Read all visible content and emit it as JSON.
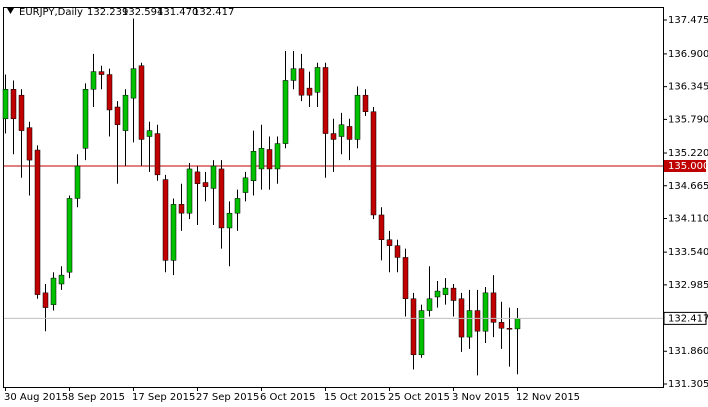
{
  "chart_data": {
    "type": "candlestick",
    "title": "EURJPY,Daily",
    "header_values": [
      "132.239",
      "132.594",
      "131.470",
      "132.417"
    ],
    "categories": [
      "30 Aug 2015",
      null,
      null,
      null,
      null,
      null,
      null,
      null,
      "8 Sep 2015",
      null,
      null,
      null,
      null,
      null,
      null,
      null,
      "17 Sep 2015",
      null,
      null,
      null,
      null,
      null,
      null,
      null,
      "27 Sep 2015",
      null,
      null,
      null,
      null,
      null,
      null,
      null,
      "6 Oct 2015",
      null,
      null,
      null,
      null,
      null,
      null,
      null,
      "15 Oct 2015",
      null,
      null,
      null,
      null,
      null,
      null,
      null,
      "25 Oct 2015",
      null,
      null,
      null,
      null,
      null,
      null,
      null,
      "3 Nov 2015",
      null,
      null,
      null,
      null,
      null,
      null,
      null,
      "12 Nov 2015"
    ],
    "open": [
      135.8,
      136.3,
      136.2,
      135.65,
      135.27,
      132.85,
      132.65,
      133.0,
      133.2,
      134.45,
      135.3,
      136.3,
      136.6,
      136.55,
      136.0,
      135.6,
      136.15,
      136.7,
      135.5,
      135.55,
      134.77,
      133.4,
      134.35,
      134.2,
      134.9,
      134.72,
      134.62,
      134.95,
      133.95,
      134.2,
      134.55,
      134.75,
      134.95,
      135.28,
      134.95,
      135.38,
      136.45,
      136.65,
      136.32,
      136.25,
      136.67,
      135.55,
      135.5,
      135.67,
      135.45,
      136.2,
      135.92,
      134.17,
      133.75,
      133.65,
      133.45,
      132.75,
      131.8,
      132.55,
      132.78,
      132.82,
      132.93,
      132.75,
      132.1,
      132.55,
      132.2,
      132.85,
      132.35,
      132.25,
      132.239
    ],
    "high": [
      136.55,
      136.45,
      136.3,
      135.75,
      135.35,
      133.0,
      133.2,
      133.3,
      134.5,
      135.2,
      136.4,
      136.9,
      136.7,
      136.65,
      136.1,
      136.3,
      137.5,
      136.75,
      135.75,
      135.7,
      134.85,
      134.45,
      134.7,
      135.05,
      135.0,
      134.9,
      135.1,
      135.1,
      134.4,
      134.6,
      134.9,
      135.6,
      135.7,
      135.5,
      135.5,
      136.95,
      136.95,
      136.9,
      136.6,
      136.75,
      136.75,
      135.8,
      135.9,
      135.8,
      136.35,
      136.3,
      136.0,
      134.3,
      133.9,
      133.75,
      133.6,
      132.85,
      132.65,
      133.3,
      133.05,
      133.1,
      133.0,
      132.85,
      132.9,
      132.9,
      132.95,
      133.15,
      132.7,
      132.6,
      132.594
    ],
    "low": [
      135.55,
      135.2,
      134.8,
      134.5,
      132.75,
      132.2,
      132.55,
      132.9,
      133.1,
      134.3,
      135.1,
      136.0,
      136.3,
      135.5,
      134.7,
      135.0,
      135.4,
      135.0,
      134.9,
      134.75,
      133.2,
      133.15,
      133.9,
      134.1,
      134.0,
      134.4,
      134.0,
      133.6,
      133.3,
      133.9,
      134.4,
      134.5,
      134.6,
      134.6,
      134.7,
      135.3,
      136.3,
      136.1,
      136.0,
      136.0,
      134.8,
      134.9,
      135.2,
      135.1,
      135.3,
      135.85,
      134.1,
      133.4,
      133.2,
      133.2,
      132.45,
      131.55,
      131.75,
      132.45,
      132.6,
      132.65,
      132.45,
      131.85,
      131.9,
      131.45,
      132.0,
      132.1,
      131.9,
      131.6,
      131.47
    ],
    "close": [
      136.3,
      135.8,
      135.6,
      135.1,
      132.82,
      132.6,
      133.1,
      133.15,
      134.45,
      135.0,
      136.3,
      136.6,
      136.55,
      135.95,
      135.7,
      136.2,
      136.65,
      135.45,
      135.6,
      134.85,
      133.4,
      134.35,
      134.2,
      134.95,
      134.7,
      134.65,
      135.0,
      133.95,
      134.2,
      134.45,
      134.8,
      135.25,
      135.3,
      134.95,
      135.38,
      136.45,
      136.65,
      136.2,
      136.2,
      136.67,
      135.55,
      135.45,
      135.7,
      135.45,
      136.2,
      135.92,
      134.17,
      133.75,
      133.65,
      133.45,
      132.75,
      131.8,
      132.55,
      132.75,
      132.88,
      132.93,
      132.72,
      132.1,
      132.55,
      132.2,
      132.85,
      132.35,
      132.25,
      132.24,
      132.417
    ],
    "up_color": "#00c000",
    "down_color": "#c00000",
    "ylim": [
      131.254,
      137.678
    ],
    "yticks": [
      137.475,
      {
        "value": 136.9,
        "label": "136.900"
      },
      136.345,
      {
        "value": 135.79,
        "label": "135.790"
      },
      {
        "value": 135.22,
        "label": "135.220"
      },
      134.665,
      {
        "value": 134.11,
        "label": "134.110"
      },
      {
        "value": 133.54,
        "label": "133.540"
      },
      132.985,
      {
        "value": 131.86,
        "label": "131.860"
      },
      131.305
    ],
    "hline": {
      "value": 135,
      "label": "135.000",
      "color": "#c00000"
    }
  }
}
